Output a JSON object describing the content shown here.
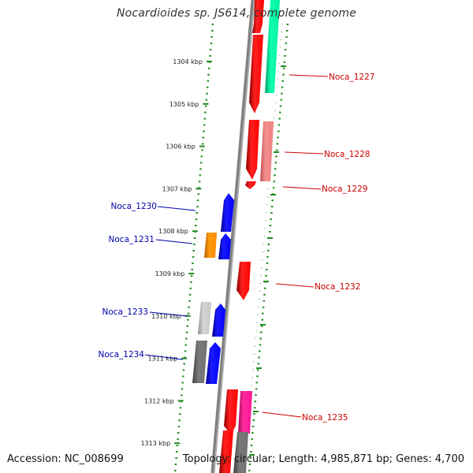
{
  "title": "Nocardioides sp. JS614, complete genome",
  "footer": {
    "accession": "Accession: NC_008699",
    "topology": "Topology: circular; Length: 4,985,871 bp; Genes: 4,700"
  },
  "scale_labels": [
    "1304 kbp",
    "1305 kbp",
    "1306 kbp",
    "1307 kbp",
    "1308 kbp",
    "1309 kbp",
    "1310 kbp",
    "1311 kbp",
    "1312 kbp",
    "1313 kbp"
  ],
  "gene_labels_right": [
    "Noca_1227",
    "Noca_1228",
    "Noca_1229",
    "Noca_1232",
    "Noca_1235"
  ],
  "gene_labels_left": [
    "Noca_1230",
    "Noca_1231",
    "Noca_1233",
    "Noca_1234"
  ],
  "colors": {
    "backbone": "#808080",
    "ticks": "#228b22",
    "forward_gene": "#ff0000",
    "forward_gene_light": "#f08080",
    "reverse_gene": "#0000ff",
    "rna": "#00f0a0",
    "pink": "#ff1493",
    "orange": "#ff8c00",
    "gray": "#707070",
    "light_gray": "#c8c8c8",
    "label_right": "#cc0000",
    "label_left": "#0000aa"
  }
}
